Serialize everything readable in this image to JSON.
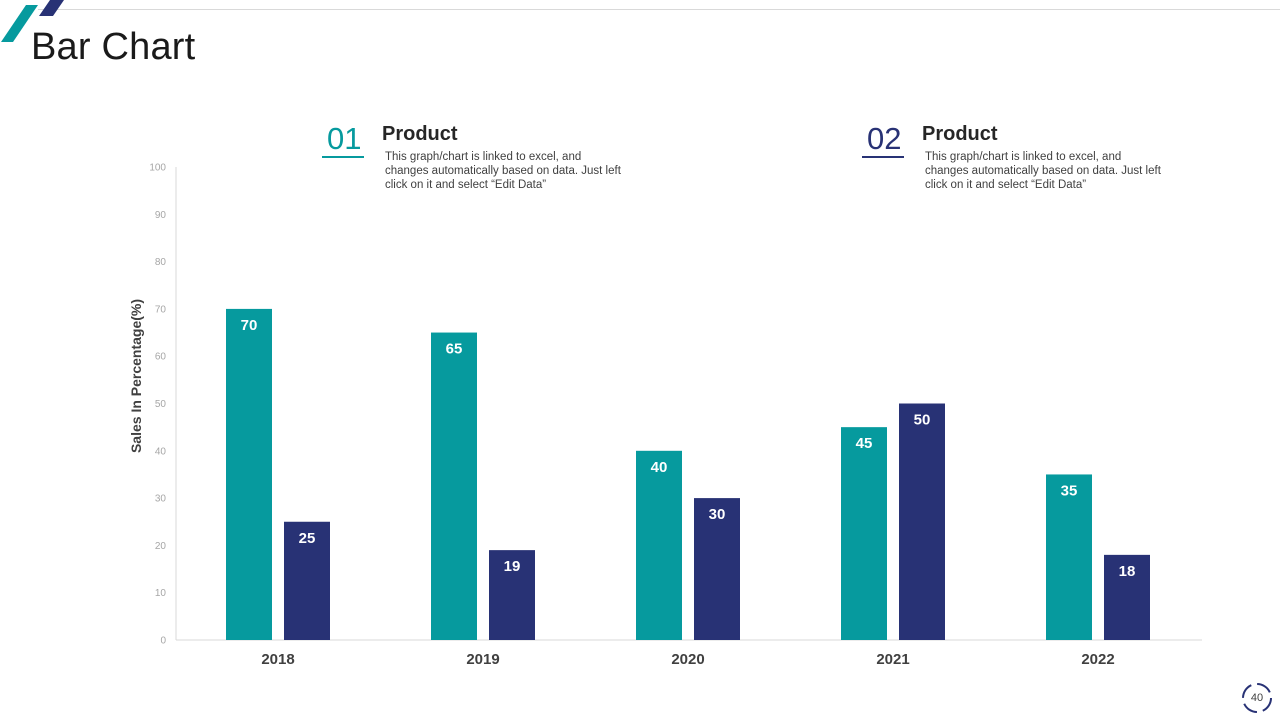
{
  "slide": {
    "title": "Bar Chart",
    "page_number": "40"
  },
  "legend": [
    {
      "number": "01",
      "title": "Product",
      "description": "This graph/chart is linked to excel,  and changes automatically based on data. Just left click on it and select “Edit Data”",
      "color": "#069a9e"
    },
    {
      "number": "02",
      "title": "Product",
      "description": "This graph/chart is linked to excel,  and changes automatically based on data. Just left click on it and select “Edit Data”",
      "color": "#283275"
    }
  ],
  "colors": {
    "accent_teal": "#069a9e",
    "accent_navy": "#283275",
    "axis_text": "#a6a6a6",
    "label_text": "#404040"
  },
  "chart_data": {
    "type": "bar",
    "title": "",
    "xlabel": "",
    "ylabel": "Sales In Percentage(%)",
    "ylim": [
      0,
      100
    ],
    "yticks": [
      0,
      10,
      20,
      30,
      40,
      50,
      60,
      70,
      80,
      90,
      100
    ],
    "categories": [
      "2018",
      "2019",
      "2020",
      "2021",
      "2022"
    ],
    "series": [
      {
        "name": "Product 01",
        "color": "#069a9e",
        "values": [
          70,
          65,
          40,
          45,
          35
        ]
      },
      {
        "name": "Product 02",
        "color": "#283275",
        "values": [
          25,
          19,
          30,
          50,
          18
        ]
      }
    ],
    "grid": false,
    "legend_position": "top"
  }
}
